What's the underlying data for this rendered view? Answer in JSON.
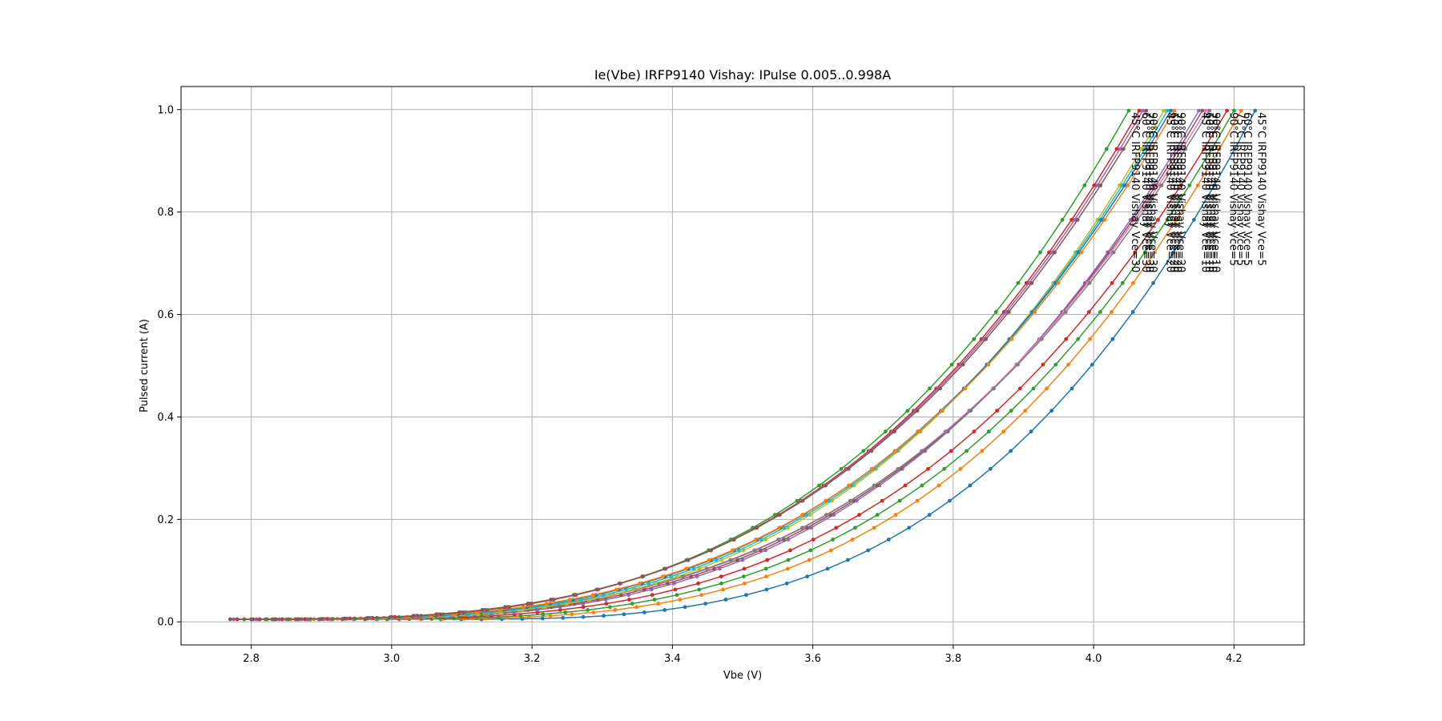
{
  "chart_data": {
    "type": "line",
    "title": "Ie(Vbe) IRFP9140 Vishay: IPulse 0.005..0.998A",
    "xlabel": "Vbe (V)",
    "ylabel": "Pulsed current (A)",
    "xlim": [
      2.7,
      4.3
    ],
    "ylim": [
      -0.045,
      1.045
    ],
    "xticks": [
      "2.8",
      "3.0",
      "3.2",
      "3.4",
      "3.6",
      "3.8",
      "4.0",
      "4.2"
    ],
    "yticks": [
      "0.0",
      "0.2",
      "0.4",
      "0.6",
      "0.8",
      "1.0"
    ],
    "grid": true,
    "marker": "dot",
    "series": [
      {
        "name": "45°C IRFP9140 Vishay Vce=5",
        "color": "#1f77b4",
        "vstart": 3.07,
        "vend": 4.23
      },
      {
        "name": "60°C IRFP9140 Vishay Vce=5",
        "color": "#ff7f0e",
        "vstart": 2.98,
        "vend": 4.21
      },
      {
        "name": "75°C IRFP9140 Vishay Vce=5",
        "color": "#2ca02c",
        "vstart": 2.93,
        "vend": 4.2
      },
      {
        "name": "90°C IRFP9140 Vishay Vce=5",
        "color": "#d62728",
        "vstart": 2.88,
        "vend": 4.19
      },
      {
        "name": "45°C IRFP9140 Vishay Vce=10",
        "color": "#9467bd",
        "vstart": 2.85,
        "vend": 4.15
      },
      {
        "name": "60°C IRFP9140 Vishay Vce=10",
        "color": "#8c564b",
        "vstart": 2.83,
        "vend": 4.155
      },
      {
        "name": "75°C IRFP9140 Vishay Vce=10",
        "color": "#e377c2",
        "vstart": 2.81,
        "vend": 4.16
      },
      {
        "name": "90°C IRFP9140 Vishay Vce=10",
        "color": "#7f7f7f",
        "vstart": 2.8,
        "vend": 4.165
      },
      {
        "name": "45°C IRFP9140 Vishay Vce=20",
        "color": "#bcbd22",
        "vstart": 2.84,
        "vend": 4.1
      },
      {
        "name": "60°C IRFP9140 Vishay Vce=20",
        "color": "#17becf",
        "vstart": 2.82,
        "vend": 4.105
      },
      {
        "name": "75°C IRFP9140 Vishay Vce=20",
        "color": "#1f77b4",
        "vstart": 2.8,
        "vend": 4.11
      },
      {
        "name": "90°C IRFP9140 Vishay Vce=20",
        "color": "#ff7f0e",
        "vstart": 2.79,
        "vend": 4.115
      },
      {
        "name": "45°C IRFP9140 Vishay Vce=30",
        "color": "#2ca02c",
        "vstart": 2.79,
        "vend": 4.05
      },
      {
        "name": "60°C IRFP9140 Vishay Vce=30",
        "color": "#d62728",
        "vstart": 2.78,
        "vend": 4.065
      },
      {
        "name": "75°C IRFP9140 Vishay Vce=30",
        "color": "#9467bd",
        "vstart": 2.775,
        "vend": 4.07
      },
      {
        "name": "90°C IRFP9140 Vishay Vce=30",
        "color": "#8c564b",
        "vstart": 2.77,
        "vend": 4.075
      }
    ]
  }
}
